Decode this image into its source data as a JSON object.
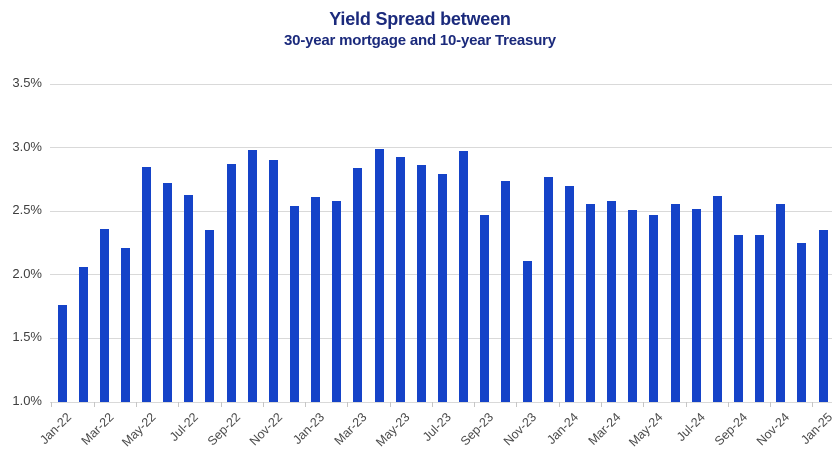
{
  "header": {
    "title": "Yield Spread between",
    "subtitle": "30-year mortgage and 10-year Treasury"
  },
  "chart_data": {
    "type": "bar",
    "title": "Yield Spread between",
    "subtitle": "30-year mortgage and 10-year Treasury",
    "unit": "%",
    "categories": [
      "Jan-22",
      "Feb-22",
      "Mar-22",
      "Apr-22",
      "May-22",
      "Jun-22",
      "Jul-22",
      "Aug-22",
      "Sep-22",
      "Oct-22",
      "Nov-22",
      "Dec-22",
      "Jan-23",
      "Feb-23",
      "Mar-23",
      "Apr-23",
      "May-23",
      "Jun-23",
      "Jul-23",
      "Aug-23",
      "Sep-23",
      "Oct-23",
      "Nov-23",
      "Dec-23",
      "Jan-24",
      "Feb-24",
      "Mar-24",
      "Apr-24",
      "May-24",
      "Jun-24",
      "Jul-24",
      "Aug-24",
      "Sep-24",
      "Oct-24",
      "Nov-24",
      "Dec-24",
      "Jan-25"
    ],
    "values": [
      1.76,
      2.06,
      2.36,
      2.21,
      2.85,
      2.72,
      2.63,
      2.35,
      2.87,
      2.98,
      2.9,
      2.54,
      2.61,
      2.58,
      2.84,
      2.99,
      2.93,
      2.86,
      2.79,
      2.97,
      2.47,
      2.74,
      2.11,
      2.77,
      2.7,
      2.56,
      2.58,
      2.51,
      2.47,
      2.56,
      2.52,
      2.62,
      2.31,
      2.31,
      2.56,
      2.25,
      2.35
    ],
    "x_tick_labels": [
      "Jan-22",
      "Mar-22",
      "May-22",
      "Jul-22",
      "Sep-22",
      "Nov-22",
      "Jan-23",
      "Mar-23",
      "May-23",
      "Jul-23",
      "Sep-23",
      "Nov-23",
      "Jan-24",
      "Mar-24",
      "May-24",
      "Jul-24",
      "Sep-24",
      "Nov-24",
      "Jan-25"
    ],
    "x_label_every": 2,
    "y_tick_labels": [
      "3.5%",
      "3.0%",
      "2.5%",
      "2.0%",
      "1.5%",
      "1.0%"
    ],
    "ylim": [
      1.0,
      3.5
    ],
    "y_step": 0.5,
    "grid": true,
    "legend_position": "none",
    "bar_color": "#1543c8",
    "grid_color": "#d9d9d9",
    "tick_color": "#c6c6c6",
    "title_color": "#1b2a7c",
    "axis_text_color": "#4a4a4a"
  }
}
